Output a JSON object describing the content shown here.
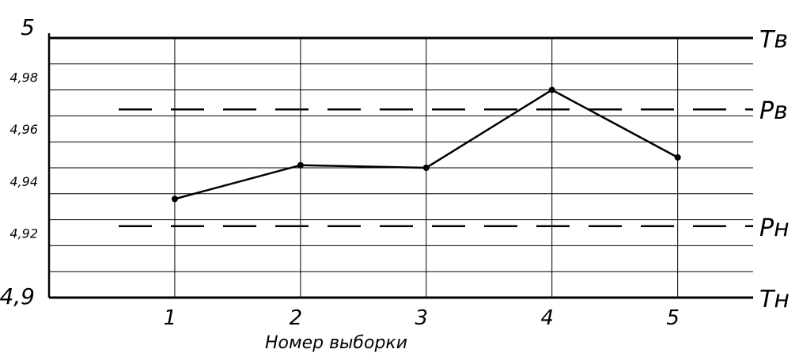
{
  "chart_data": {
    "type": "line",
    "xlabel": "Номер выборки",
    "ylabel": "",
    "categories": [
      "1",
      "2",
      "3",
      "4",
      "5"
    ],
    "x": [
      1,
      2,
      3,
      4,
      5
    ],
    "values": [
      4.938,
      4.951,
      4.95,
      4.98,
      4.954
    ],
    "ylim": [
      4.9,
      5.0
    ],
    "xlim": [
      0,
      5.6
    ],
    "y_ticks": [
      {
        "value": 5.0,
        "label": "5",
        "size": "large"
      },
      {
        "value": 4.98,
        "label": "4,98",
        "size": "small"
      },
      {
        "value": 4.96,
        "label": "4,96",
        "size": "small"
      },
      {
        "value": 4.94,
        "label": "4,94",
        "size": "small"
      },
      {
        "value": 4.92,
        "label": "4,92",
        "size": "small"
      },
      {
        "value": 4.9,
        "label": "4,9",
        "size": "large"
      }
    ],
    "grid": true,
    "limits": [
      {
        "label": "Тв",
        "value": 5.0,
        "style": "solid"
      },
      {
        "label": "Рв",
        "value": 4.9725,
        "style": "dashed"
      },
      {
        "label": "Рн",
        "value": 4.9275,
        "style": "dashed"
      },
      {
        "label": "Тн",
        "value": 4.9,
        "style": "solid"
      }
    ]
  }
}
